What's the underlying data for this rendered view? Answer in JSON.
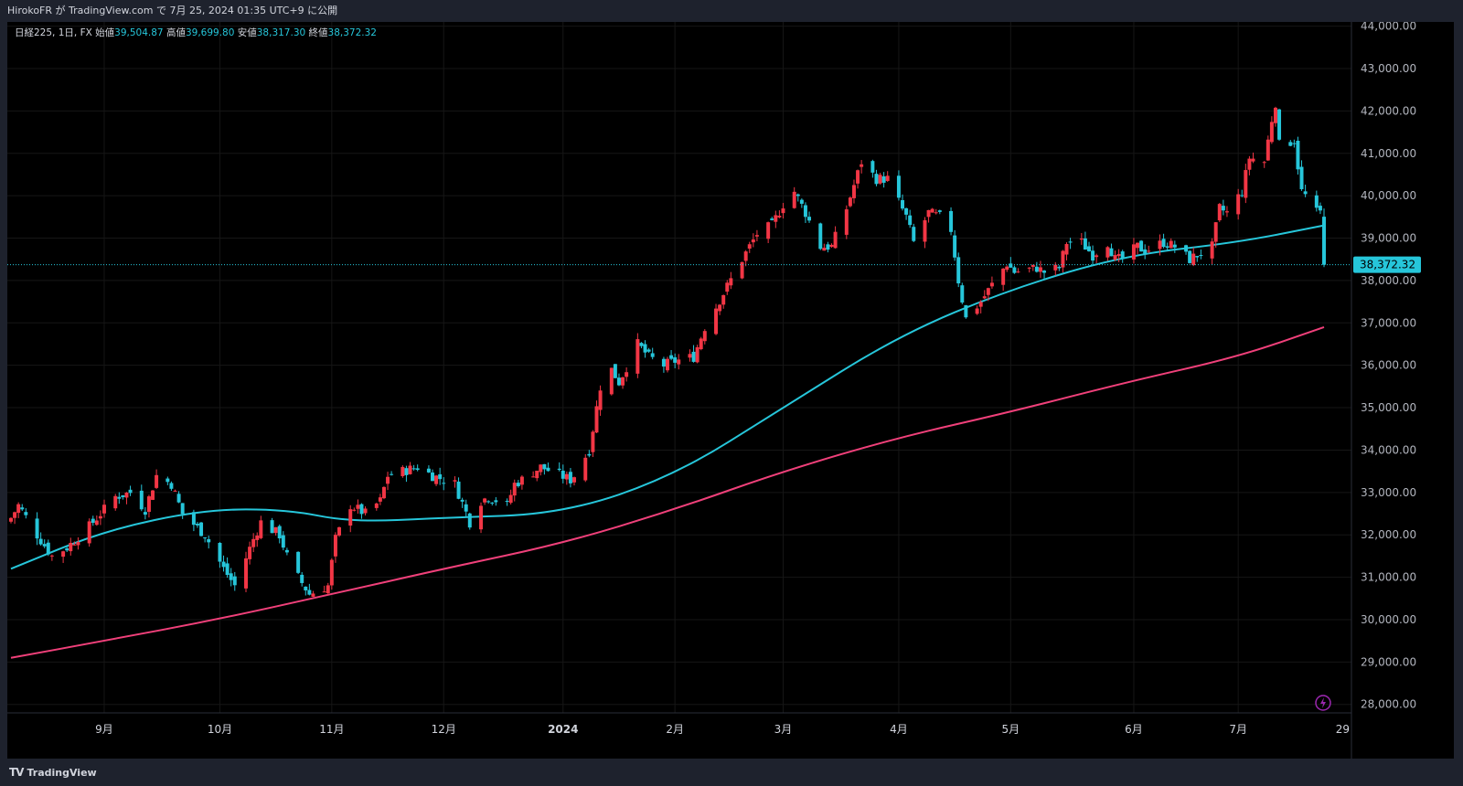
{
  "header": {
    "publish_line": "HirokoFR が TradingView.com で 7月 25, 2024 01:35 UTC+9 に公開"
  },
  "legend": {
    "symbol": "日経225, 1日, FX",
    "open_label": "始値",
    "open_value": "39,504.87",
    "high_label": "高値",
    "high_value": "39,699.80",
    "low_label": "安値",
    "low_value": "38,317.30",
    "close_label": "終値",
    "close_value": "38,372.32"
  },
  "price_scale": {
    "labels": [
      "44,000.00",
      "43,000.00",
      "42,000.00",
      "41,000.00",
      "40,000.00",
      "39,000.00",
      "38,000.00",
      "37,000.00",
      "36,000.00",
      "35,000.00",
      "34,000.00",
      "33,000.00",
      "32,000.00",
      "31,000.00",
      "30,000.00",
      "29,000.00",
      "28,000.00"
    ],
    "last_price_label": "38,372.32"
  },
  "time_scale": {
    "labels": [
      "9月",
      "10月",
      "11月",
      "12月",
      "2024",
      "2月",
      "3月",
      "4月",
      "5月",
      "6月",
      "7月",
      "29"
    ]
  },
  "footer": {
    "brand": "TradingView",
    "brand_mark": "TV"
  },
  "colors": {
    "up": "#f23645",
    "down": "#26c6da",
    "ma_short": "#26c6da",
    "ma_long": "#f0407a",
    "background": "#000000",
    "grid": "#1a1a1a"
  },
  "icons": {
    "replay_flash": "lightning-icon"
  },
  "chart_data": {
    "type": "candlestick",
    "ylim": [
      27800,
      44100
    ],
    "x_month_labels": [
      "9月",
      "10月",
      "11月",
      "12月",
      "2024",
      "2月",
      "3月",
      "4月",
      "5月",
      "6月",
      "7月",
      "29"
    ],
    "close_anchors": [
      [
        "2023-08-07",
        32400
      ],
      [
        "2023-08-09",
        32700
      ],
      [
        "2023-08-14",
        32000
      ],
      [
        "2023-08-18",
        31500
      ],
      [
        "2023-08-22",
        31700
      ],
      [
        "2023-08-28",
        32200
      ],
      [
        "2023-09-04",
        32900
      ],
      [
        "2023-09-08",
        33000
      ],
      [
        "2023-09-12",
        32600
      ],
      [
        "2023-09-15",
        33400
      ],
      [
        "2023-09-19",
        33200
      ],
      [
        "2023-09-22",
        32500
      ],
      [
        "2023-09-28",
        32000
      ],
      [
        "2023-10-03",
        31200
      ],
      [
        "2023-10-06",
        30800
      ],
      [
        "2023-10-11",
        31900
      ],
      [
        "2023-10-13",
        32300
      ],
      [
        "2023-10-18",
        32000
      ],
      [
        "2023-10-20",
        31500
      ],
      [
        "2023-10-23",
        31000
      ],
      [
        "2023-10-26",
        30600
      ],
      [
        "2023-10-31",
        30800
      ],
      [
        "2023-11-02",
        31900
      ],
      [
        "2023-11-06",
        32700
      ],
      [
        "2023-11-10",
        32500
      ],
      [
        "2023-11-14",
        32800
      ],
      [
        "2023-11-16",
        33400
      ],
      [
        "2023-11-20",
        33500
      ],
      [
        "2023-11-24",
        33600
      ],
      [
        "2023-11-28",
        33400
      ],
      [
        "2023-12-04",
        33200
      ],
      [
        "2023-12-08",
        32300
      ],
      [
        "2023-12-11",
        32800
      ],
      [
        "2023-12-13",
        32900
      ],
      [
        "2023-12-18",
        32700
      ],
      [
        "2023-12-20",
        33200
      ],
      [
        "2023-12-22",
        33300
      ],
      [
        "2023-12-27",
        33600
      ],
      [
        "2024-01-04",
        33300
      ],
      [
        "2024-01-05",
        33400
      ],
      [
        "2024-01-09",
        34000
      ],
      [
        "2024-01-12",
        35500
      ],
      [
        "2024-01-15",
        35900
      ],
      [
        "2024-01-17",
        35600
      ],
      [
        "2024-01-22",
        36500
      ],
      [
        "2024-01-25",
        36200
      ],
      [
        "2024-01-29",
        36000
      ],
      [
        "2024-02-01",
        36100
      ],
      [
        "2024-02-06",
        36200
      ],
      [
        "2024-02-09",
        36900
      ],
      [
        "2024-02-14",
        37700
      ],
      [
        "2024-02-19",
        38500
      ],
      [
        "2024-02-23",
        39100
      ],
      [
        "2024-02-27",
        39300
      ],
      [
        "2024-03-01",
        39800
      ],
      [
        "2024-03-04",
        40100
      ],
      [
        "2024-03-07",
        39600
      ],
      [
        "2024-03-11",
        38800
      ],
      [
        "2024-03-14",
        38800
      ],
      [
        "2024-03-18",
        39700
      ],
      [
        "2024-03-22",
        40800
      ],
      [
        "2024-03-26",
        40400
      ],
      [
        "2024-03-29",
        40400
      ],
      [
        "2024-04-03",
        39500
      ],
      [
        "2024-04-05",
        38900
      ],
      [
        "2024-04-09",
        39600
      ],
      [
        "2024-04-12",
        39500
      ],
      [
        "2024-04-15",
        39200
      ],
      [
        "2024-04-17",
        38000
      ],
      [
        "2024-04-19",
        37100
      ],
      [
        "2024-04-23",
        37500
      ],
      [
        "2024-04-26",
        37900
      ],
      [
        "2024-04-30",
        38400
      ],
      [
        "2024-05-02",
        38200
      ],
      [
        "2024-05-08",
        38300
      ],
      [
        "2024-05-10",
        38200
      ],
      [
        "2024-05-14",
        38300
      ],
      [
        "2024-05-16",
        38900
      ],
      [
        "2024-05-20",
        38900
      ],
      [
        "2024-05-23",
        38600
      ],
      [
        "2024-05-27",
        38900
      ],
      [
        "2024-05-29",
        38500
      ],
      [
        "2024-05-31",
        38500
      ],
      [
        "2024-06-04",
        38800
      ],
      [
        "2024-06-06",
        38700
      ],
      [
        "2024-06-11",
        38900
      ],
      [
        "2024-06-14",
        38800
      ],
      [
        "2024-06-18",
        38500
      ],
      [
        "2024-06-20",
        38600
      ],
      [
        "2024-06-24",
        38800
      ],
      [
        "2024-06-26",
        39700
      ],
      [
        "2024-06-28",
        39600
      ],
      [
        "2024-07-02",
        40100
      ],
      [
        "2024-07-04",
        40900
      ],
      [
        "2024-07-08",
        40800
      ],
      [
        "2024-07-10",
        41800
      ],
      [
        "2024-07-11",
        42200
      ],
      [
        "2024-07-12",
        41200
      ],
      [
        "2024-07-16",
        41300
      ],
      [
        "2024-07-18",
        40100
      ],
      [
        "2024-07-19",
        40000
      ],
      [
        "2024-07-22",
        39600
      ],
      [
        "2024-07-23",
        39600
      ],
      [
        "2024-07-24",
        38372
      ]
    ],
    "ma_short": {
      "color": "#26c6da",
      "points": [
        [
          "2023-08-07",
          31200
        ],
        [
          "2023-09-01",
          32100
        ],
        [
          "2023-09-28",
          32600
        ],
        [
          "2023-10-20",
          32600
        ],
        [
          "2023-11-06",
          32300
        ],
        [
          "2023-12-01",
          32400
        ],
        [
          "2024-01-02",
          32500
        ],
        [
          "2024-02-01",
          33400
        ],
        [
          "2024-03-01",
          35000
        ],
        [
          "2024-04-01",
          36700
        ],
        [
          "2024-05-01",
          37800
        ],
        [
          "2024-06-01",
          38600
        ],
        [
          "2024-07-01",
          38900
        ],
        [
          "2024-07-24",
          39300
        ]
      ]
    },
    "ma_long": {
      "color": "#f0407a",
      "points": [
        [
          "2023-08-07",
          29100
        ],
        [
          "2023-09-01",
          29500
        ],
        [
          "2023-10-01",
          30000
        ],
        [
          "2023-11-01",
          30600
        ],
        [
          "2023-12-01",
          31200
        ],
        [
          "2024-01-02",
          31800
        ],
        [
          "2024-02-01",
          32600
        ],
        [
          "2024-03-01",
          33500
        ],
        [
          "2024-04-01",
          34300
        ],
        [
          "2024-05-01",
          34900
        ],
        [
          "2024-06-01",
          35600
        ],
        [
          "2024-07-01",
          36200
        ],
        [
          "2024-07-24",
          36900
        ]
      ]
    },
    "last_close": {
      "open": 39504.87,
      "high": 39699.8,
      "low": 38317.3,
      "close": 38372.32
    }
  }
}
